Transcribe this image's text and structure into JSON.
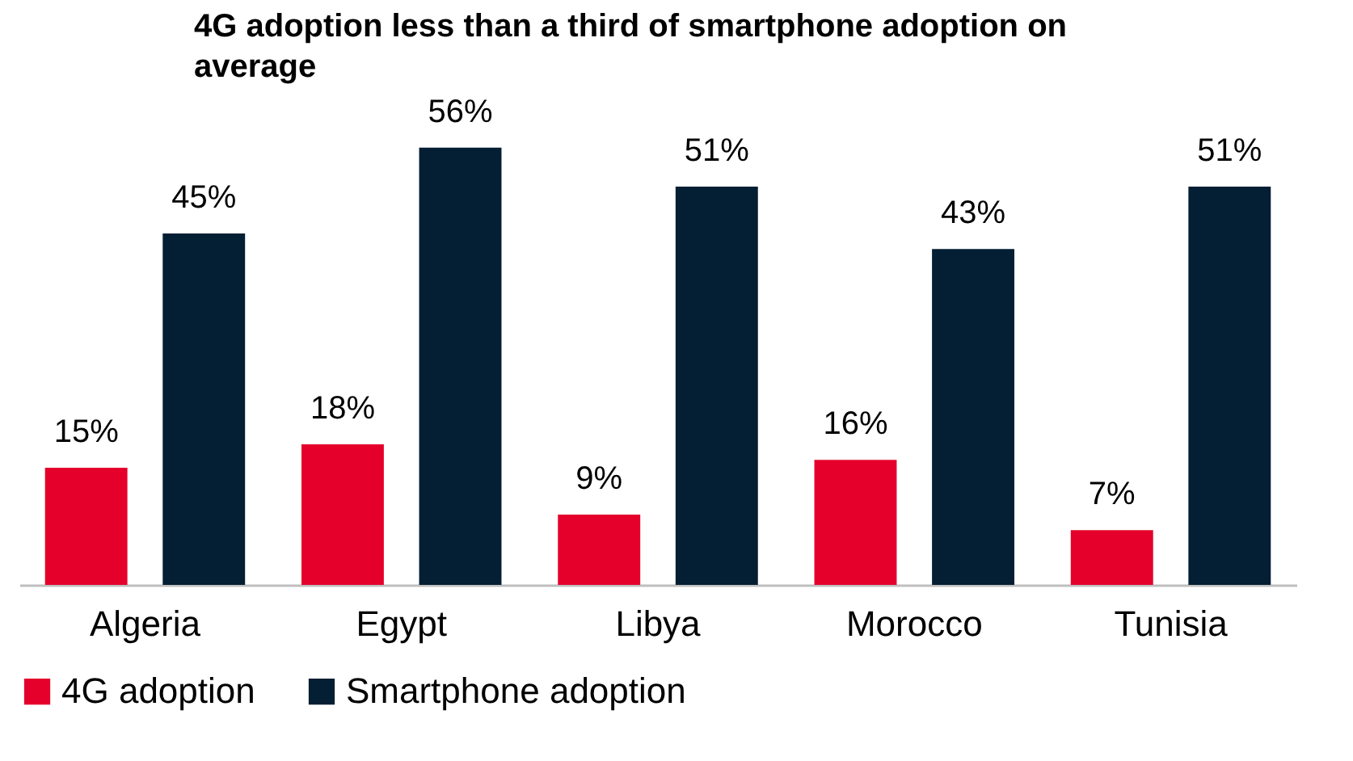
{
  "chart_data": {
    "type": "bar",
    "title": "4G adoption less than a third of smartphone adoption on average",
    "categories": [
      "Algeria",
      "Egypt",
      "Libya",
      "Morocco",
      "Tunisia"
    ],
    "series": [
      {
        "name": "4G adoption",
        "color": "#e4002b",
        "values": [
          15,
          18,
          9,
          16,
          7
        ],
        "value_labels": [
          "15%",
          "18%",
          "9%",
          "16%",
          "7%"
        ]
      },
      {
        "name": "Smartphone adoption",
        "color": "#041e33",
        "values": [
          45,
          56,
          51,
          43,
          51
        ],
        "value_labels": [
          "45%",
          "56%",
          "51%",
          "43%",
          "51%"
        ]
      }
    ],
    "legend": "bottom"
  }
}
